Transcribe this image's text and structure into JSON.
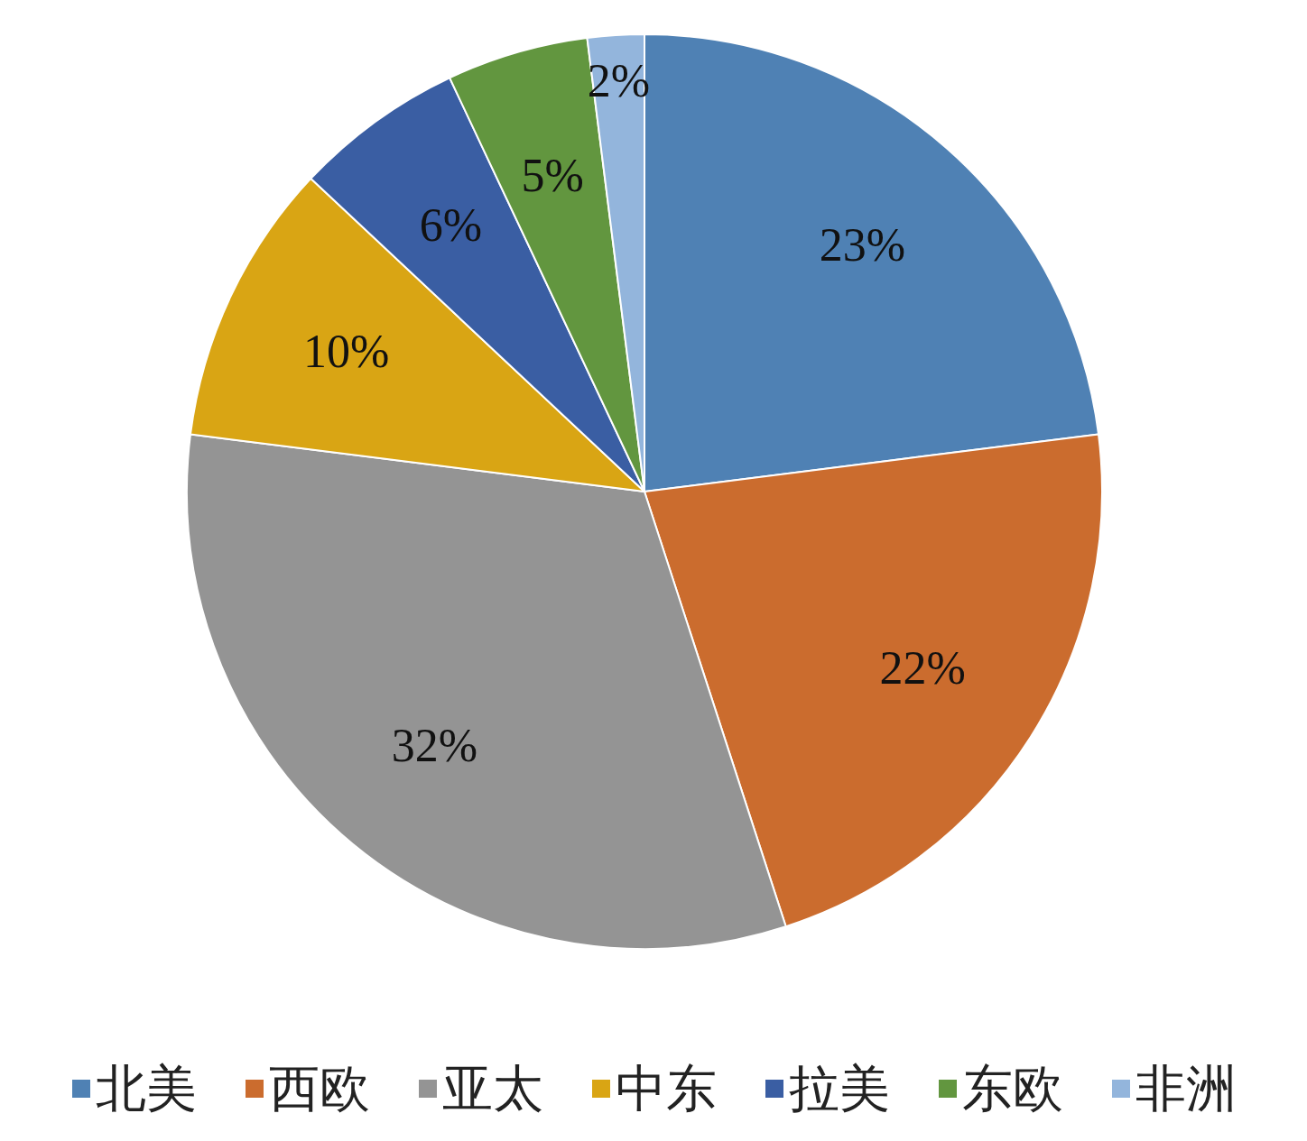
{
  "chart_data": {
    "type": "pie",
    "categories": [
      "北美",
      "西欧",
      "亚太",
      "中东",
      "拉美",
      "东欧",
      "非洲"
    ],
    "values": [
      23,
      22,
      32,
      10,
      6,
      5,
      2
    ],
    "colors": [
      "#4f81b4",
      "#cb6c2e",
      "#949494",
      "#d9a514",
      "#3a5ea3",
      "#62963f",
      "#93b5dc"
    ],
    "value_labels": [
      "23%",
      "22%",
      "32%",
      "10%",
      "6%",
      "5%",
      "2%"
    ],
    "legend": "bottom"
  }
}
